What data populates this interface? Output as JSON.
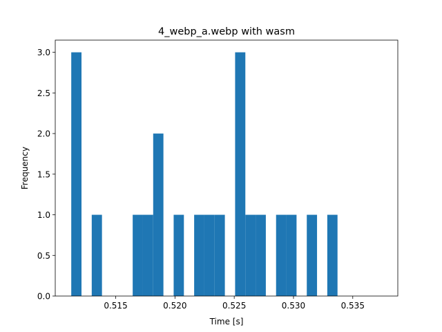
{
  "chart_data": {
    "type": "bar",
    "title": "4_webp_a.webp with wasm",
    "xlabel": "Time [s]",
    "ylabel": "Frequency",
    "xlim": [
      0.5099,
      0.5388
    ],
    "ylim": [
      0,
      3.15
    ],
    "bar_color": "#1f77b4",
    "grid": false,
    "legend": "none",
    "x_ticks": [
      0.515,
      0.52,
      0.525,
      0.53,
      0.535
    ],
    "x_tick_labels": [
      "0.515",
      "0.520",
      "0.525",
      "0.530",
      "0.535"
    ],
    "y_ticks": [
      0,
      0.5,
      1,
      1.5,
      2,
      2.5,
      3
    ],
    "y_tick_labels": [
      "0.0",
      "0.5",
      "1.0",
      "1.5",
      "2.0",
      "2.5",
      "3.0"
    ],
    "bin_start": 0.51125,
    "bin_width": 0.000864,
    "counts": [
      3,
      0,
      1,
      0,
      0,
      0,
      1,
      1,
      2,
      0,
      1,
      0,
      1,
      1,
      1,
      0,
      3,
      1,
      1,
      0,
      1,
      1,
      0,
      1,
      0,
      1
    ]
  }
}
